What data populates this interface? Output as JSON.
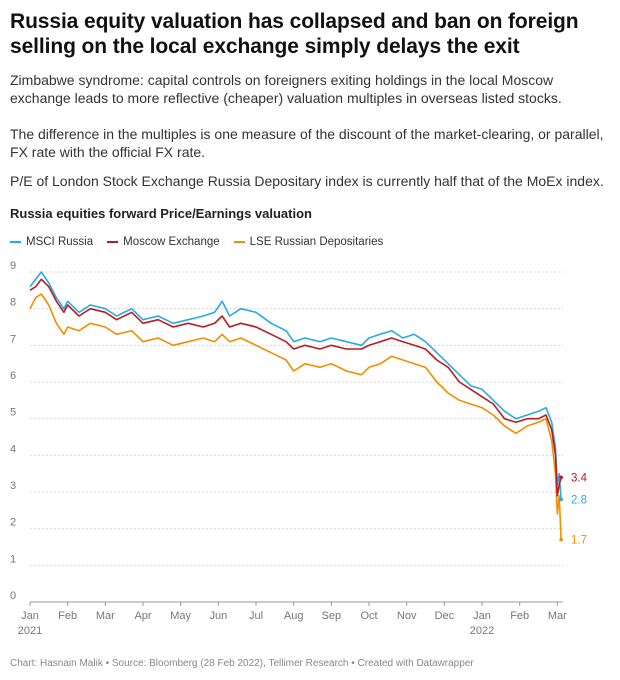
{
  "header": {
    "title": "Russia equity valuation has collapsed and ban on foreign selling on the local exchange simply delays the exit",
    "description_1": "Zimbabwe syndrome: capital controls on foreigners exiting holdings in the local Moscow exchange leads to more reflective (cheaper) valuation multiples in overseas listed stocks.",
    "description_2": "The difference in the multiples is one measure of the discount of the market-clearing, or parallel, FX rate with the official FX rate.",
    "description_3": "P/E of London Stock Exchange Russia Depositary index is currently half that of the MoEx index."
  },
  "footer": {
    "credit": "Chart: Hasnain Malik • Source: Bloomberg (28 Feb 2022), Tellimer Research • Created with Datawrapper"
  },
  "colors": {
    "msci": "#29abe2",
    "moex": "#b71c23",
    "lse": "#f28e00",
    "grid": "#cccccc",
    "tick": "#777777"
  },
  "chart_data": {
    "type": "line",
    "title": "Russia equities forward Price/Earnings valuation",
    "xlabel": "",
    "ylabel": "",
    "ylim": [
      0,
      9
    ],
    "yticks": [
      "0",
      "1",
      "2",
      "3",
      "4",
      "5",
      "6",
      "7",
      "8",
      "9"
    ],
    "grid": true,
    "legend_position": "top-left",
    "xticks": [
      {
        "label": "Jan",
        "sub": "2021",
        "x": 0
      },
      {
        "label": "Feb",
        "sub": "",
        "x": 1
      },
      {
        "label": "Mar",
        "sub": "",
        "x": 2
      },
      {
        "label": "Apr",
        "sub": "",
        "x": 3
      },
      {
        "label": "May",
        "sub": "",
        "x": 4
      },
      {
        "label": "Jun",
        "sub": "",
        "x": 5
      },
      {
        "label": "Jul",
        "sub": "",
        "x": 6
      },
      {
        "label": "Aug",
        "sub": "",
        "x": 7
      },
      {
        "label": "Sep",
        "sub": "",
        "x": 8
      },
      {
        "label": "Oct",
        "sub": "",
        "x": 9
      },
      {
        "label": "Nov",
        "sub": "",
        "x": 10
      },
      {
        "label": "Dec",
        "sub": "",
        "x": 11
      },
      {
        "label": "Jan",
        "sub": "2022",
        "x": 12
      },
      {
        "label": "Feb",
        "sub": "",
        "x": 13
      },
      {
        "label": "Mar",
        "sub": "",
        "x": 14
      }
    ],
    "series": [
      {
        "name": "MSCI Russia",
        "color": "#29abe2",
        "end_label": "2.8",
        "points": [
          [
            0,
            8.6
          ],
          [
            0.15,
            8.8
          ],
          [
            0.3,
            9.0
          ],
          [
            0.5,
            8.7
          ],
          [
            0.7,
            8.3
          ],
          [
            0.9,
            8.0
          ],
          [
            1.0,
            8.2
          ],
          [
            1.3,
            7.9
          ],
          [
            1.6,
            8.1
          ],
          [
            2.0,
            8.0
          ],
          [
            2.3,
            7.8
          ],
          [
            2.7,
            8.0
          ],
          [
            3.0,
            7.7
          ],
          [
            3.4,
            7.8
          ],
          [
            3.8,
            7.6
          ],
          [
            4.2,
            7.7
          ],
          [
            4.6,
            7.8
          ],
          [
            4.9,
            7.9
          ],
          [
            5.1,
            8.2
          ],
          [
            5.3,
            7.8
          ],
          [
            5.6,
            8.0
          ],
          [
            6.0,
            7.9
          ],
          [
            6.4,
            7.6
          ],
          [
            6.8,
            7.4
          ],
          [
            7.0,
            7.1
          ],
          [
            7.3,
            7.2
          ],
          [
            7.7,
            7.1
          ],
          [
            8.0,
            7.2
          ],
          [
            8.4,
            7.1
          ],
          [
            8.8,
            7.0
          ],
          [
            9.0,
            7.2
          ],
          [
            9.3,
            7.3
          ],
          [
            9.6,
            7.4
          ],
          [
            9.9,
            7.2
          ],
          [
            10.2,
            7.3
          ],
          [
            10.5,
            7.1
          ],
          [
            10.8,
            6.8
          ],
          [
            11.1,
            6.5
          ],
          [
            11.4,
            6.2
          ],
          [
            11.7,
            5.9
          ],
          [
            12.0,
            5.8
          ],
          [
            12.3,
            5.5
          ],
          [
            12.6,
            5.2
          ],
          [
            12.9,
            5.0
          ],
          [
            13.2,
            5.1
          ],
          [
            13.5,
            5.2
          ],
          [
            13.7,
            5.3
          ],
          [
            13.85,
            4.9
          ],
          [
            13.95,
            4.2
          ],
          [
            14.0,
            3.2
          ],
          [
            14.05,
            3.5
          ],
          [
            14.1,
            2.8
          ]
        ]
      },
      {
        "name": "Moscow Exchange",
        "color": "#b71c23",
        "end_label": "3.4",
        "points": [
          [
            0,
            8.5
          ],
          [
            0.15,
            8.6
          ],
          [
            0.3,
            8.8
          ],
          [
            0.5,
            8.6
          ],
          [
            0.7,
            8.2
          ],
          [
            0.9,
            7.9
          ],
          [
            1.0,
            8.1
          ],
          [
            1.3,
            7.8
          ],
          [
            1.6,
            8.0
          ],
          [
            2.0,
            7.9
          ],
          [
            2.3,
            7.7
          ],
          [
            2.7,
            7.9
          ],
          [
            3.0,
            7.6
          ],
          [
            3.4,
            7.7
          ],
          [
            3.8,
            7.5
          ],
          [
            4.2,
            7.6
          ],
          [
            4.6,
            7.5
          ],
          [
            4.9,
            7.6
          ],
          [
            5.1,
            7.8
          ],
          [
            5.3,
            7.5
          ],
          [
            5.6,
            7.6
          ],
          [
            6.0,
            7.5
          ],
          [
            6.4,
            7.3
          ],
          [
            6.8,
            7.1
          ],
          [
            7.0,
            6.9
          ],
          [
            7.3,
            7.0
          ],
          [
            7.7,
            6.9
          ],
          [
            8.0,
            7.0
          ],
          [
            8.4,
            6.9
          ],
          [
            8.8,
            6.9
          ],
          [
            9.0,
            7.0
          ],
          [
            9.3,
            7.1
          ],
          [
            9.6,
            7.2
          ],
          [
            9.9,
            7.1
          ],
          [
            10.2,
            7.0
          ],
          [
            10.5,
            6.9
          ],
          [
            10.8,
            6.6
          ],
          [
            11.1,
            6.4
          ],
          [
            11.4,
            6.0
          ],
          [
            11.7,
            5.8
          ],
          [
            12.0,
            5.6
          ],
          [
            12.3,
            5.4
          ],
          [
            12.6,
            5.0
          ],
          [
            12.9,
            4.9
          ],
          [
            13.2,
            5.0
          ],
          [
            13.5,
            5.0
          ],
          [
            13.7,
            5.1
          ],
          [
            13.85,
            4.7
          ],
          [
            13.95,
            4.0
          ],
          [
            14.0,
            2.9
          ],
          [
            14.05,
            3.2
          ],
          [
            14.1,
            3.4
          ]
        ]
      },
      {
        "name": "LSE Russian Depositaries",
        "color": "#f28e00",
        "end_label": "1.7",
        "points": [
          [
            0,
            8.0
          ],
          [
            0.15,
            8.3
          ],
          [
            0.3,
            8.4
          ],
          [
            0.5,
            8.1
          ],
          [
            0.7,
            7.6
          ],
          [
            0.9,
            7.3
          ],
          [
            1.0,
            7.5
          ],
          [
            1.3,
            7.4
          ],
          [
            1.6,
            7.6
          ],
          [
            2.0,
            7.5
          ],
          [
            2.3,
            7.3
          ],
          [
            2.7,
            7.4
          ],
          [
            3.0,
            7.1
          ],
          [
            3.4,
            7.2
          ],
          [
            3.8,
            7.0
          ],
          [
            4.2,
            7.1
          ],
          [
            4.6,
            7.2
          ],
          [
            4.9,
            7.1
          ],
          [
            5.1,
            7.3
          ],
          [
            5.3,
            7.1
          ],
          [
            5.6,
            7.2
          ],
          [
            6.0,
            7.0
          ],
          [
            6.4,
            6.8
          ],
          [
            6.8,
            6.6
          ],
          [
            7.0,
            6.3
          ],
          [
            7.3,
            6.5
          ],
          [
            7.7,
            6.4
          ],
          [
            8.0,
            6.5
          ],
          [
            8.4,
            6.3
          ],
          [
            8.8,
            6.2
          ],
          [
            9.0,
            6.4
          ],
          [
            9.3,
            6.5
          ],
          [
            9.6,
            6.7
          ],
          [
            9.9,
            6.6
          ],
          [
            10.2,
            6.5
          ],
          [
            10.5,
            6.4
          ],
          [
            10.8,
            6.0
          ],
          [
            11.1,
            5.7
          ],
          [
            11.4,
            5.5
          ],
          [
            11.7,
            5.4
          ],
          [
            12.0,
            5.3
          ],
          [
            12.3,
            5.1
          ],
          [
            12.6,
            4.8
          ],
          [
            12.9,
            4.6
          ],
          [
            13.2,
            4.8
          ],
          [
            13.5,
            4.9
          ],
          [
            13.7,
            5.0
          ],
          [
            13.85,
            4.4
          ],
          [
            13.95,
            3.5
          ],
          [
            14.0,
            2.4
          ],
          [
            14.05,
            2.9
          ],
          [
            14.1,
            1.7
          ]
        ]
      }
    ]
  }
}
